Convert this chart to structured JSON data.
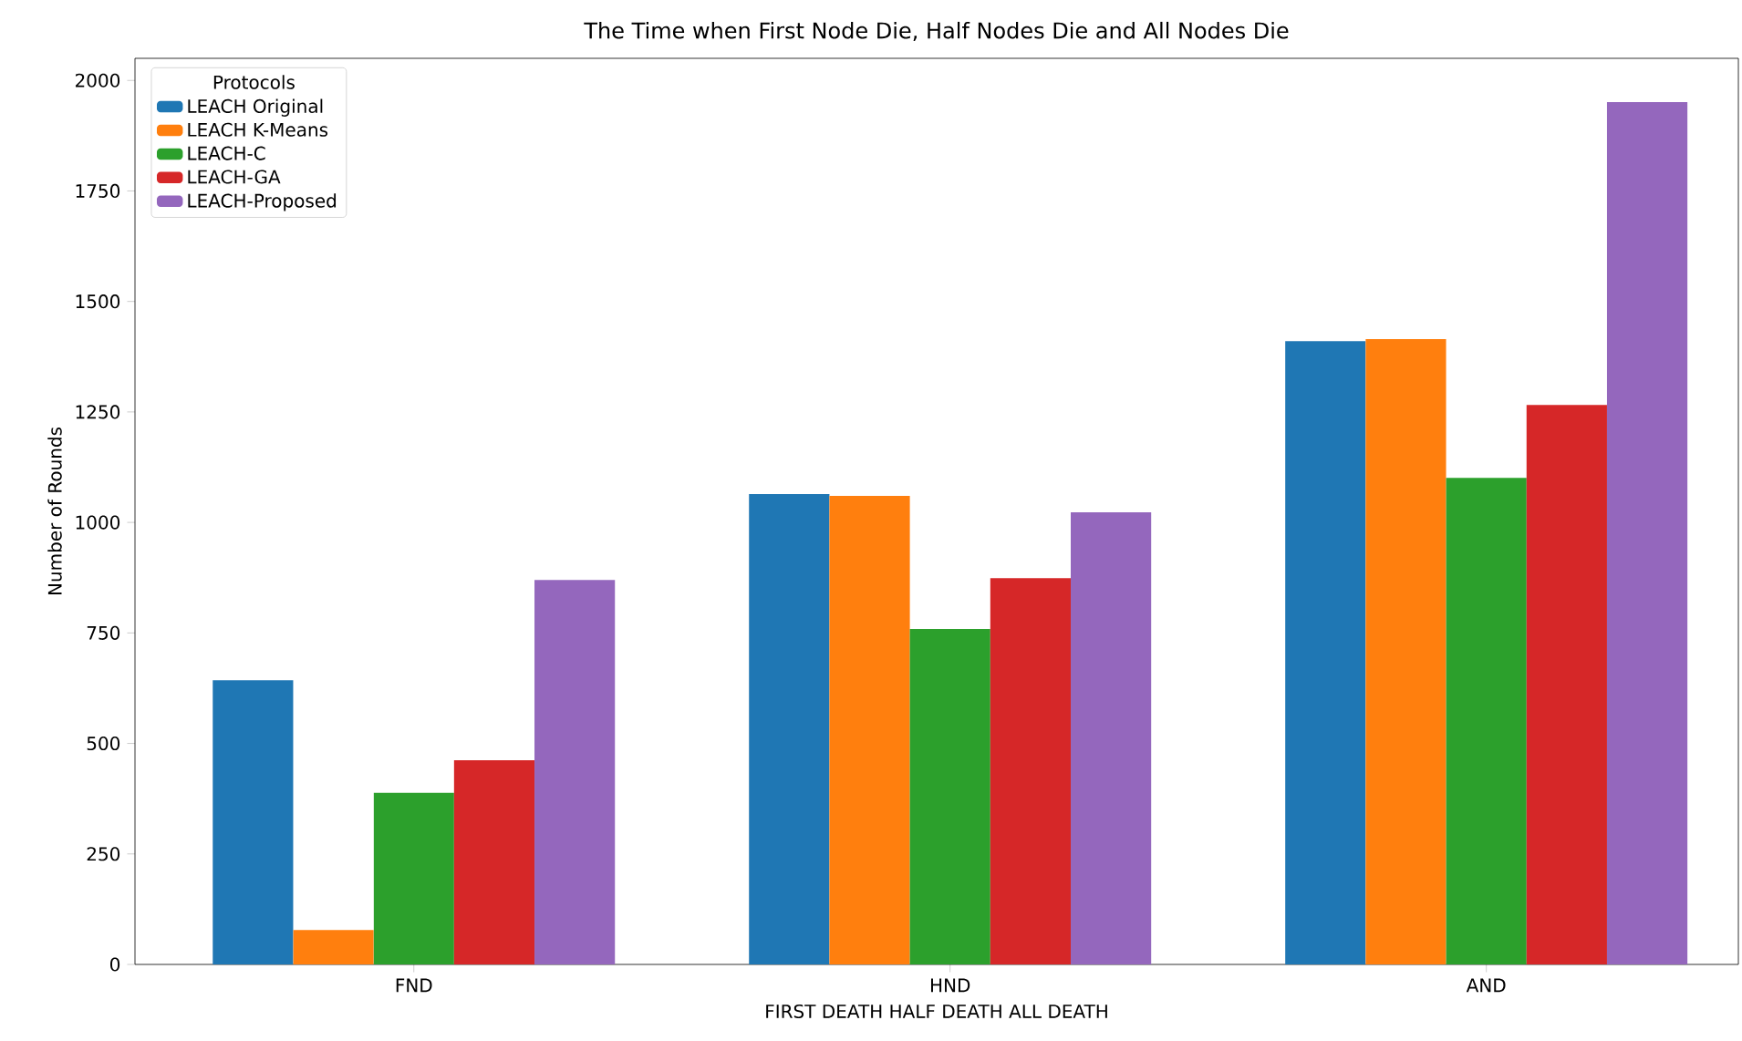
{
  "chart_data": {
    "type": "bar",
    "title": "The Time when First Node Die, Half Nodes Die and All Nodes Die",
    "xlabel": "FIRST DEATH            HALF DEATH            ALL DEATH",
    "ylabel": "Number of Rounds",
    "legend_title": "Protocols",
    "legend": "top left",
    "categories": [
      "FND",
      "HND",
      "AND"
    ],
    "series": [
      {
        "name": "LEACH Original",
        "color": "#1f77b4",
        "values": [
          643,
          1064,
          1410
        ]
      },
      {
        "name": "LEACH K-Means",
        "color": "#ff7f0e",
        "values": [
          78,
          1060,
          1415
        ]
      },
      {
        "name": "LEACH-C",
        "color": "#2ca02c",
        "values": [
          388,
          759,
          1101
        ]
      },
      {
        "name": "LEACH-GA",
        "color": "#d62728",
        "values": [
          462,
          874,
          1266
        ]
      },
      {
        "name": "LEACH-Proposed",
        "color": "#9467bd",
        "values": [
          870,
          1023,
          1951
        ]
      }
    ],
    "ylim": [
      0,
      2050
    ],
    "yticks": [
      0,
      250,
      500,
      750,
      1000,
      1250,
      1500,
      1750,
      2000
    ]
  }
}
